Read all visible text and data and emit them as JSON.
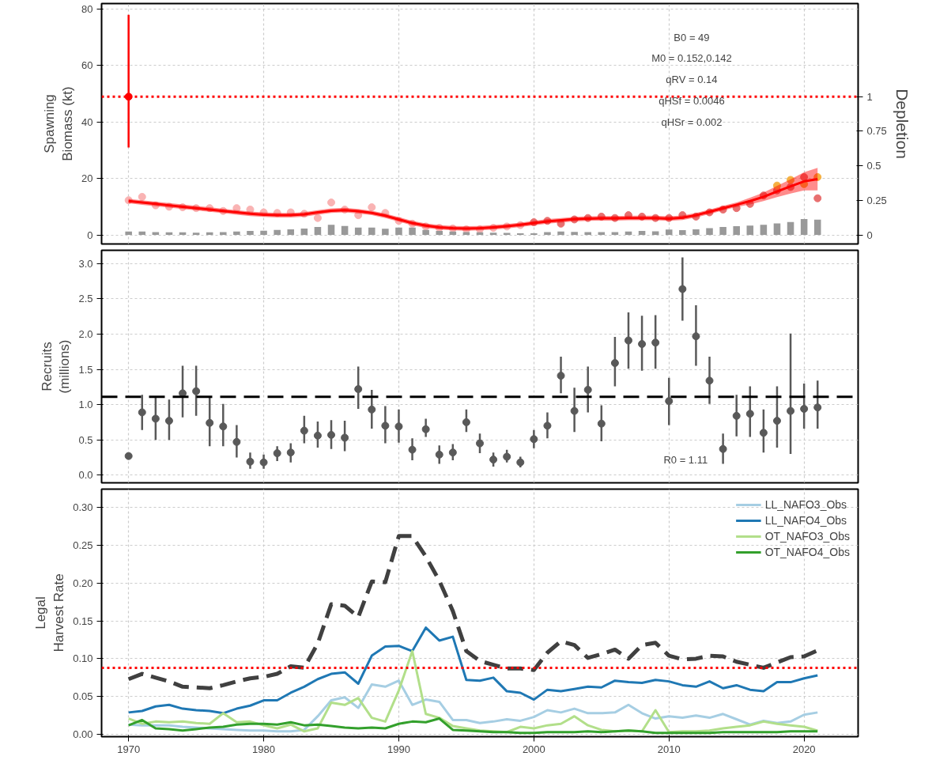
{
  "chart_data": [
    {
      "type": "line",
      "ylabel": "Spawning\nBiomass (kt)",
      "y2label": "Depletion",
      "x": [
        1970,
        1971,
        1972,
        1973,
        1974,
        1975,
        1976,
        1977,
        1978,
        1979,
        1980,
        1981,
        1982,
        1983,
        1984,
        1985,
        1986,
        1987,
        1988,
        1989,
        1990,
        1991,
        1992,
        1993,
        1994,
        1995,
        1996,
        1997,
        1998,
        1999,
        2000,
        2001,
        2002,
        2003,
        2004,
        2005,
        2006,
        2007,
        2008,
        2009,
        2010,
        2011,
        2012,
        2013,
        2014,
        2015,
        2016,
        2017,
        2018,
        2019,
        2020,
        2021
      ],
      "xlim": [
        1968,
        2024
      ],
      "xticks": [
        1970,
        1980,
        1990,
        2000,
        2010,
        2020
      ],
      "ylim": [
        -3.2,
        82
      ],
      "yticks": [
        0,
        20,
        40,
        60,
        80
      ],
      "y2lim": [
        -0.065,
        1.673
      ],
      "y2ticks": [
        0,
        0.25,
        0.5,
        0.75,
        1
      ],
      "grid": true,
      "tick_labels": "y",
      "series": [
        {
          "type": "bar",
          "color": "#999999",
          "values": [
            1.2,
            1.2,
            1.0,
            0.9,
            0.9,
            0.8,
            0.9,
            1.0,
            1.2,
            1.4,
            1.5,
            1.8,
            2.0,
            2.3,
            2.8,
            3.6,
            3.2,
            2.6,
            2.6,
            2.2,
            2.6,
            2.6,
            1.8,
            1.4,
            1.2,
            1.0,
            0.9,
            0.8,
            0.7,
            0.6,
            0.6,
            1.0,
            1.2,
            1.1,
            1.0,
            1.0,
            1.0,
            1.2,
            1.4,
            1.3,
            1.9,
            1.7,
            2.0,
            2.4,
            2.8,
            3.1,
            3.3,
            3.6,
            4.1,
            4.6,
            5.6,
            5.4
          ]
        },
        {
          "type": "scatter",
          "marker": "circle",
          "color": "#f9b3b3",
          "x": [
            1970,
            1971,
            1972,
            1973,
            1974,
            1975,
            1976,
            1977,
            1978,
            1979,
            1980,
            1981,
            1982,
            1983,
            1984,
            1985,
            1986,
            1987,
            1988,
            1989,
            1990,
            1991,
            1992,
            1993,
            1994,
            1995,
            1996,
            1997,
            1998,
            1999
          ],
          "values": [
            12.3,
            13.5,
            10.5,
            10,
            9.8,
            9.5,
            9.5,
            8.5,
            9.5,
            9.0,
            8.0,
            7.8,
            8.0,
            7.5,
            6.0,
            11.5,
            9.0,
            7.0,
            9.8,
            7.8,
            5.0,
            4.0,
            3.0,
            2.5,
            2.3,
            2.0,
            2.0,
            2.5,
            3.0,
            3.5
          ]
        },
        {
          "type": "scatter",
          "marker": "circle",
          "color": "#e87070",
          "x": [
            2000,
            2001,
            2002,
            2003,
            2004,
            2005,
            2006,
            2007,
            2008,
            2009,
            2010,
            2011,
            2012,
            2013,
            2014,
            2015,
            2016,
            2017,
            2018,
            2019,
            2020,
            2021
          ],
          "values": [
            4.5,
            5.0,
            4.0,
            5.5,
            6.0,
            6.5,
            6.0,
            7.0,
            6.5,
            6.0,
            6.0,
            7.0,
            6.5,
            8.0,
            9.0,
            9.5,
            11.0,
            14.0,
            15.8,
            17.0,
            20.5,
            13.0
          ]
        },
        {
          "type": "scatter",
          "marker": "circle",
          "color": "#f5b041",
          "x": [
            2018,
            2019,
            2020,
            2021
          ],
          "values": [
            17.5,
            19.5,
            18.0,
            20.5
          ]
        },
        {
          "type": "line",
          "color": "#ff0000",
          "values": [
            12,
            11.5,
            11,
            10.5,
            10,
            9.5,
            9,
            8.5,
            8,
            7.5,
            7.2,
            7,
            7,
            7.3,
            8,
            8.6,
            8.8,
            8.4,
            7.8,
            6.8,
            5.5,
            4.2,
            3.3,
            2.7,
            2.4,
            2.3,
            2.4,
            2.7,
            3.1,
            3.6,
            4.2,
            4.8,
            5.2,
            5.6,
            5.8,
            5.9,
            5.9,
            6,
            6,
            6,
            5.8,
            6.1,
            7,
            8.2,
            9.5,
            10.7,
            12,
            13.5,
            15.4,
            17.2,
            19,
            19.8
          ],
          "lower": [
            11.2,
            10.7,
            10.2,
            9.7,
            9.2,
            8.7,
            8.2,
            7.7,
            7.2,
            6.7,
            6.4,
            6.2,
            6.2,
            6.5,
            7.2,
            7.8,
            8,
            7.6,
            7,
            6,
            4.7,
            3.4,
            2.5,
            1.9,
            1.6,
            1.5,
            1.6,
            1.9,
            2.3,
            2.8,
            3.4,
            4,
            4.4,
            4.8,
            5,
            5.1,
            5.1,
            5.2,
            5.2,
            5.2,
            5,
            5.3,
            6.2,
            7.4,
            8.7,
            9.9,
            10.8,
            12,
            13.4,
            14.7,
            15.8,
            15.8
          ],
          "upper": [
            12.8,
            12.3,
            11.8,
            11.3,
            10.8,
            10.3,
            9.8,
            9.3,
            8.8,
            8.3,
            8,
            7.8,
            7.8,
            8.1,
            8.8,
            9.4,
            9.6,
            9.2,
            8.6,
            7.6,
            6.3,
            5,
            4.1,
            3.5,
            3.2,
            3.1,
            3.2,
            3.5,
            3.9,
            4.4,
            5,
            5.6,
            6,
            6.4,
            6.6,
            6.7,
            6.7,
            6.8,
            6.8,
            6.8,
            6.6,
            6.9,
            7.8,
            9,
            10.3,
            11.5,
            13.2,
            15,
            17.4,
            19.7,
            22.2,
            23.8
          ]
        },
        {
          "type": "scatter",
          "marker": "circle",
          "color": "#ff0000",
          "x": [
            1970
          ],
          "values": [
            49
          ],
          "errors": [
            [
              31,
              78
            ]
          ]
        }
      ],
      "ref_lines": [
        {
          "axis": "y",
          "value": 49,
          "color": "#ff0000",
          "line_style": "dotted"
        }
      ],
      "annotations": [
        "B0 = 49",
        "M0 = 0.152,0.142",
        "qRV = 0.14",
        "qHSf = 0.0046",
        "qHSr = 0.002"
      ]
    },
    {
      "type": "scatter",
      "ylabel": "Recruits\n(millions)",
      "marker": "circle",
      "x": [
        1970,
        1971,
        1972,
        1973,
        1974,
        1975,
        1976,
        1977,
        1978,
        1979,
        1980,
        1981,
        1982,
        1983,
        1984,
        1985,
        1986,
        1987,
        1988,
        1989,
        1990,
        1991,
        1992,
        1993,
        1994,
        1995,
        1996,
        1997,
        1998,
        1999,
        2000,
        2001,
        2002,
        2003,
        2004,
        2005,
        2006,
        2007,
        2008,
        2009,
        2010,
        2011,
        2012,
        2013,
        2014,
        2015,
        2016,
        2017,
        2018,
        2019,
        2020,
        2021
      ],
      "xlim": [
        1968,
        2024
      ],
      "xticks": [
        1970,
        1980,
        1990,
        2000,
        2010,
        2020
      ],
      "ylim": [
        -0.11,
        3.19
      ],
      "yticks": [
        {
          "value": 0,
          "label": "0.0"
        },
        0.5,
        {
          "value": 1,
          "label": "1.0"
        },
        1.5,
        {
          "value": 2,
          "label": "2.0"
        },
        2.5,
        {
          "value": 3,
          "label": "3.0"
        }
      ],
      "grid": true,
      "tick_labels": "y",
      "series": [
        {
          "color": "#595959",
          "values": [
            0.27,
            0.89,
            0.8,
            0.77,
            1.16,
            1.19,
            0.74,
            0.69,
            0.47,
            0.19,
            0.18,
            0.31,
            0.32,
            0.63,
            0.56,
            0.57,
            0.53,
            1.22,
            0.93,
            0.7,
            0.69,
            0.36,
            0.65,
            0.29,
            0.32,
            0.75,
            0.45,
            0.22,
            0.26,
            0.18,
            0.51,
            0.7,
            1.41,
            0.91,
            1.21,
            0.73,
            1.59,
            1.91,
            1.86,
            1.88,
            1.05,
            2.64,
            1.97,
            1.34,
            0.37,
            0.84,
            0.87,
            0.6,
            0.77,
            0.91,
            0.94,
            0.96
          ],
          "errors": [
            null,
            [
              0.64,
              1.14
            ],
            [
              0.5,
              1.11
            ],
            [
              0.5,
              1.07
            ],
            [
              0.82,
              1.55
            ],
            [
              0.84,
              1.55
            ],
            [
              0.41,
              1.11
            ],
            [
              0.41,
              1.01
            ],
            [
              0.25,
              0.71
            ],
            [
              0.09,
              0.32
            ],
            [
              0.09,
              0.29
            ],
            [
              0.2,
              0.41
            ],
            [
              0.18,
              0.45
            ],
            [
              0.45,
              0.84
            ],
            [
              0.39,
              0.76
            ],
            [
              0.37,
              0.78
            ],
            [
              0.34,
              0.77
            ],
            [
              0.94,
              1.54
            ],
            [
              0.66,
              1.21
            ],
            [
              0.45,
              0.98
            ],
            [
              0.46,
              0.93
            ],
            [
              0.21,
              0.52
            ],
            [
              0.54,
              0.8
            ],
            [
              0.16,
              0.42
            ],
            [
              0.21,
              0.44
            ],
            [
              0.61,
              0.93
            ],
            [
              0.31,
              0.59
            ],
            [
              0.12,
              0.32
            ],
            [
              0.18,
              0.36
            ],
            [
              0.11,
              0.26
            ],
            [
              0.38,
              0.64
            ],
            [
              0.52,
              0.89
            ],
            [
              1.16,
              1.68
            ],
            [
              0.61,
              1.24
            ],
            [
              0.89,
              1.54
            ],
            [
              0.48,
              0.99
            ],
            [
              1.26,
              1.96
            ],
            [
              1.51,
              2.31
            ],
            [
              1.48,
              2.26
            ],
            [
              1.51,
              2.27
            ],
            [
              0.71,
              1.38
            ],
            [
              2.19,
              3.09
            ],
            [
              1.55,
              2.41
            ],
            [
              1.01,
              1.68
            ],
            [
              0.16,
              0.59
            ],
            [
              0.55,
              1.14
            ],
            [
              0.54,
              1.26
            ],
            [
              0.32,
              0.93
            ],
            [
              0.39,
              1.26
            ],
            [
              0.3,
              2.01
            ],
            [
              0.66,
              1.3
            ],
            [
              0.66,
              1.34
            ]
          ]
        }
      ],
      "ref_lines": [
        {
          "axis": "y",
          "value": 1.11,
          "color": "#000000",
          "line_style": "dashed"
        }
      ],
      "annotations": [
        "R0 = 1.11"
      ]
    },
    {
      "type": "line",
      "ylabel": "Legal\nHarvest Rate",
      "legend": "top right",
      "x": [
        1970,
        1971,
        1972,
        1973,
        1974,
        1975,
        1976,
        1977,
        1978,
        1979,
        1980,
        1981,
        1982,
        1983,
        1984,
        1985,
        1986,
        1987,
        1988,
        1989,
        1990,
        1991,
        1992,
        1993,
        1994,
        1995,
        1996,
        1997,
        1998,
        1999,
        2000,
        2001,
        2002,
        2003,
        2004,
        2005,
        2006,
        2007,
        2008,
        2009,
        2010,
        2011,
        2012,
        2013,
        2014,
        2015,
        2016,
        2017,
        2018,
        2019,
        2020,
        2021
      ],
      "xlim": [
        1968,
        2024
      ],
      "xticks": [
        1970,
        1980,
        1990,
        2000,
        2010,
        2020
      ],
      "ylim": [
        -0.003,
        0.324
      ],
      "yticks": [
        {
          "value": 0,
          "label": "0.00"
        },
        0.05,
        {
          "value": 0.1,
          "label": "0.10"
        },
        0.15,
        {
          "value": 0.2,
          "label": "0.20"
        },
        0.25,
        {
          "value": 0.3,
          "label": "0.30"
        }
      ],
      "grid": true,
      "series": [
        {
          "name": "LL_NAFO3_Obs",
          "color": "#a6cee3",
          "values": [
            0.013,
            0.012,
            0.012,
            0.012,
            0.01,
            0.009,
            0.008,
            0.007,
            0.006,
            0.005,
            0.005,
            0.004,
            0.004,
            0.006,
            0.024,
            0.045,
            0.049,
            0.035,
            0.066,
            0.063,
            0.071,
            0.039,
            0.046,
            0.043,
            0.019,
            0.019,
            0.015,
            0.017,
            0.02,
            0.018,
            0.023,
            0.032,
            0.029,
            0.034,
            0.028,
            0.028,
            0.029,
            0.039,
            0.028,
            0.021,
            0.024,
            0.022,
            0.025,
            0.022,
            0.027,
            0.02,
            0.013,
            0.018,
            0.015,
            0.017,
            0.026,
            0.029
          ]
        },
        {
          "name": "LL_NAFO4_Obs",
          "color": "#1f78b4",
          "values": [
            0.029,
            0.031,
            0.037,
            0.039,
            0.034,
            0.032,
            0.031,
            0.028,
            0.034,
            0.038,
            0.045,
            0.045,
            0.055,
            0.063,
            0.073,
            0.08,
            0.082,
            0.067,
            0.104,
            0.116,
            0.117,
            0.11,
            0.141,
            0.124,
            0.129,
            0.072,
            0.071,
            0.075,
            0.057,
            0.055,
            0.046,
            0.059,
            0.057,
            0.06,
            0.063,
            0.062,
            0.071,
            0.069,
            0.068,
            0.072,
            0.07,
            0.065,
            0.063,
            0.07,
            0.061,
            0.065,
            0.059,
            0.057,
            0.069,
            0.069,
            0.074,
            0.078
          ]
        },
        {
          "name": "OT_NAFO3_Obs",
          "color": "#b2df8a",
          "values": [
            0.021,
            0.014,
            0.017,
            0.016,
            0.017,
            0.015,
            0.014,
            0.028,
            0.016,
            0.017,
            0.012,
            0.008,
            0.013,
            0.004,
            0.008,
            0.042,
            0.039,
            0.048,
            0.022,
            0.017,
            0.058,
            0.11,
            0.027,
            0.022,
            0.011,
            0.008,
            0.005,
            0.004,
            0.003,
            0.01,
            0.008,
            0.012,
            0.014,
            0.024,
            0.012,
            0.006,
            0.004,
            0.005,
            0.004,
            0.032,
            0.003,
            0.004,
            0.004,
            0.005,
            0.008,
            0.01,
            0.012,
            0.017,
            0.014,
            0.012,
            0.01,
            0.005
          ]
        },
        {
          "name": "OT_NAFO4_Obs",
          "color": "#33a02c",
          "values": [
            0.012,
            0.019,
            0.008,
            0.007,
            0.005,
            0.007,
            0.009,
            0.01,
            0.013,
            0.014,
            0.014,
            0.013,
            0.016,
            0.012,
            0.013,
            0.011,
            0.009,
            0.008,
            0.009,
            0.008,
            0.014,
            0.017,
            0.016,
            0.021,
            0.006,
            0.005,
            0.004,
            0.003,
            0.003,
            0.002,
            0.002,
            0.003,
            0.003,
            0.003,
            0.004,
            0.003,
            0.004,
            0.005,
            0.004,
            0.002,
            0.002,
            0.002,
            0.002,
            0.002,
            0.003,
            0.003,
            0.003,
            0.003,
            0.003,
            0.004,
            0.004,
            0.004
          ]
        },
        {
          "color": "#404040",
          "line_style": "dashed",
          "values": [
            0.073,
            0.08,
            0.075,
            0.07,
            0.063,
            0.062,
            0.061,
            0.065,
            0.07,
            0.074,
            0.076,
            0.08,
            0.09,
            0.088,
            0.12,
            0.172,
            0.17,
            0.155,
            0.202,
            0.201,
            0.262,
            0.262,
            0.235,
            0.203,
            0.163,
            0.11,
            0.097,
            0.092,
            0.087,
            0.087,
            0.085,
            0.108,
            0.123,
            0.118,
            0.101,
            0.106,
            0.112,
            0.1,
            0.118,
            0.121,
            0.104,
            0.099,
            0.1,
            0.104,
            0.103,
            0.096,
            0.092,
            0.088,
            0.095,
            0.102,
            0.103,
            0.111
          ]
        }
      ],
      "ref_lines": [
        {
          "axis": "y",
          "value": 0.088,
          "color": "#ff0000",
          "line_style": "dotted"
        }
      ]
    }
  ]
}
